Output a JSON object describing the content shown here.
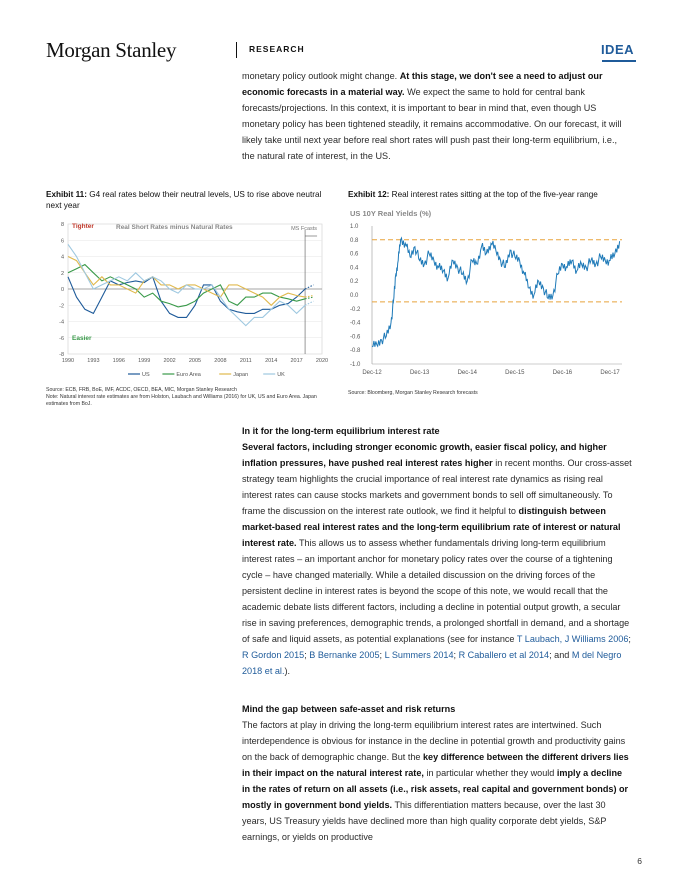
{
  "header": {
    "logo": "Morgan Stanley",
    "section": "RESEARCH",
    "tag": "IDEA"
  },
  "intro": {
    "t1": "monetary policy outlook might change. ",
    "b1": "At this stage, we don't see a need to adjust our economic forecasts in a material way.",
    "t2": " We expect the same to hold for central bank forecasts/projections. In this context, it is important to bear in mind that, even though US monetary policy has been tightened steadily, it remains accommodative. On our forecast, it will likely take until next year before real short rates will push past their long-term equilibrium, i.e., the natural rate of interest, in the US."
  },
  "exhibit11": {
    "label": "Exhibit 11:",
    "title": " G4 real rates below their neutral levels, US to rise above neutral next year",
    "source1": "Source: ECB, FRB, BoE, IMF, ACDC, OECD, BEA, MIC, Morgan Stanley Research",
    "source2": "Note: Natural interest rate estimates are from Holston, Laubach and Williams (2016) for UK, US and Euro Area. Japan estimates from BoJ.",
    "chart_data": {
      "type": "line",
      "title": "Real Short Rates minus Natural Rates",
      "annotations": [
        "Tighter",
        "Easier",
        "MS Fcasts"
      ],
      "x_ticks": [
        "1990",
        "1993",
        "1996",
        "1999",
        "2002",
        "2005",
        "2008",
        "2011",
        "2014",
        "2017",
        "2020"
      ],
      "y_ticks": [
        "8",
        "6",
        "4",
        "2",
        "0",
        "-2",
        "-4",
        "-6",
        "-8"
      ],
      "xlim": [
        1990,
        2020
      ],
      "ylim": [
        -8,
        8
      ],
      "forecast_start": 2018,
      "series": [
        {
          "name": "US",
          "color": "#1f5b9a",
          "x": [
            1990,
            1991,
            1992,
            1993,
            1994,
            1995,
            1996,
            1997,
            1998,
            1999,
            2000,
            2001,
            2002,
            2003,
            2004,
            2005,
            2006,
            2007,
            2008,
            2009,
            2010,
            2011,
            2012,
            2013,
            2014,
            2015,
            2016,
            2017,
            2018,
            2019
          ],
          "y": [
            1.5,
            -1.0,
            -2.5,
            -3.0,
            -1.0,
            1.0,
            0.5,
            0.8,
            1.0,
            0.8,
            1.5,
            -1.5,
            -3.0,
            -3.5,
            -3.5,
            -2.0,
            0.5,
            0.5,
            -1.5,
            -2.5,
            -2.8,
            -3.0,
            -3.0,
            -2.5,
            -2.5,
            -2.0,
            -1.8,
            -1.0,
            0.0,
            0.5
          ]
        },
        {
          "name": "Euro Area",
          "color": "#3a9a4a",
          "x": [
            1990,
            1991,
            1992,
            1993,
            1994,
            1995,
            1996,
            1997,
            1998,
            1999,
            2000,
            2001,
            2002,
            2003,
            2004,
            2005,
            2006,
            2007,
            2008,
            2009,
            2010,
            2011,
            2012,
            2013,
            2014,
            2015,
            2016,
            2017,
            2018,
            2019
          ],
          "y": [
            2.0,
            2.5,
            3.0,
            2.0,
            1.0,
            1.5,
            1.0,
            0.5,
            0.0,
            -1.0,
            -0.5,
            -1.5,
            -1.8,
            -2.2,
            -2.0,
            -1.5,
            -0.5,
            0.0,
            0.5,
            -1.5,
            -2.0,
            -1.0,
            -1.0,
            -0.5,
            -0.5,
            -1.0,
            -1.2,
            -1.5,
            -1.2,
            -1.0
          ]
        },
        {
          "name": "Japan",
          "color": "#e0b94d",
          "x": [
            1990,
            1991,
            1992,
            1993,
            1994,
            1995,
            1996,
            1997,
            1998,
            1999,
            2000,
            2001,
            2002,
            2003,
            2004,
            2005,
            2006,
            2007,
            2008,
            2009,
            2010,
            2011,
            2012,
            2013,
            2014,
            2015,
            2016,
            2017,
            2018,
            2019
          ],
          "y": [
            4.0,
            3.5,
            2.0,
            0.5,
            1.5,
            0.5,
            0.5,
            0.0,
            -0.5,
            1.0,
            1.5,
            0.5,
            0.5,
            0.0,
            0.5,
            0.5,
            0.0,
            -0.5,
            -1.0,
            0.5,
            0.5,
            0.0,
            -0.5,
            -1.0,
            -2.0,
            -1.0,
            -0.5,
            -0.8,
            -1.0,
            -0.8
          ]
        },
        {
          "name": "UK",
          "color": "#9ec8e0",
          "x": [
            1990,
            1991,
            1992,
            1993,
            1994,
            1995,
            1996,
            1997,
            1998,
            1999,
            2000,
            2001,
            2002,
            2003,
            2004,
            2005,
            2006,
            2007,
            2008,
            2009,
            2010,
            2011,
            2012,
            2013,
            2014,
            2015,
            2016,
            2017,
            2018,
            2019
          ],
          "y": [
            5.5,
            4.0,
            2.0,
            0.0,
            0.5,
            1.0,
            1.5,
            1.0,
            2.0,
            1.0,
            1.5,
            1.0,
            0.0,
            -0.5,
            0.5,
            0.0,
            0.0,
            0.5,
            -1.0,
            -2.5,
            -3.5,
            -4.5,
            -3.5,
            -3.5,
            -2.5,
            -1.5,
            -2.0,
            -3.0,
            -2.0,
            -1.5
          ]
        }
      ]
    }
  },
  "exhibit12": {
    "label": "Exhibit 12:",
    "title": "  Real interest rates sitting at the top of the five-year range",
    "source": "Source: Bloomberg, Morgan Stanley Research forecasts",
    "chart_data": {
      "type": "line",
      "title": "US 10Y Real Yields (%)",
      "x_ticks": [
        "Dec-12",
        "Dec-13",
        "Dec-14",
        "Dec-15",
        "Dec-16",
        "Dec-17"
      ],
      "y_ticks": [
        "1.0",
        "0.8",
        "0.6",
        "0.4",
        "0.2",
        "0.0",
        "-0.2",
        "-0.4",
        "-0.6",
        "-0.8",
        "-1.0"
      ],
      "xlim": [
        0,
        5.25
      ],
      "ylim": [
        -1.0,
        1.0
      ],
      "reference_lines": [
        0.8,
        -0.1
      ],
      "series": [
        {
          "name": "",
          "color": "#1f7ab8",
          "x": [
            0.0,
            0.1,
            0.2,
            0.3,
            0.4,
            0.45,
            0.5,
            0.55,
            0.6,
            0.7,
            0.8,
            0.9,
            1.0,
            1.1,
            1.2,
            1.3,
            1.4,
            1.5,
            1.6,
            1.7,
            1.8,
            1.9,
            2.0,
            2.1,
            2.2,
            2.3,
            2.4,
            2.5,
            2.6,
            2.7,
            2.8,
            2.9,
            3.0,
            3.1,
            3.2,
            3.3,
            3.4,
            3.5,
            3.6,
            3.7,
            3.8,
            3.9,
            4.0,
            4.1,
            4.2,
            4.3,
            4.4,
            4.5,
            4.6,
            4.7,
            4.8,
            4.9,
            5.0,
            5.1,
            5.2
          ],
          "y": [
            -0.75,
            -0.72,
            -0.65,
            -0.6,
            -0.4,
            -0.1,
            0.3,
            0.5,
            0.8,
            0.75,
            0.55,
            0.7,
            0.5,
            0.45,
            0.6,
            0.5,
            0.4,
            0.35,
            0.25,
            0.5,
            0.4,
            0.3,
            0.2,
            0.5,
            0.45,
            0.7,
            0.6,
            0.75,
            0.65,
            0.5,
            0.4,
            0.65,
            0.55,
            0.5,
            0.3,
            0.1,
            0.0,
            0.2,
            0.1,
            -0.05,
            0.0,
            0.3,
            0.45,
            0.4,
            0.5,
            0.35,
            0.45,
            0.4,
            0.5,
            0.45,
            0.55,
            0.5,
            0.5,
            0.6,
            0.78
          ]
        }
      ]
    }
  },
  "section1": {
    "heading": "In it for the long-term equilibrium interest rate",
    "b1": "Several factors, including stronger economic growth, easier fiscal policy, and higher inflation pressures, have pushed real interest rates higher",
    "t1": " in recent months. Our cross-asset strategy team highlights the crucial importance of real interest rate dynamics as rising real interest rates can cause stocks markets and government bonds to sell off simultaneously. To frame the discussion on the interest rate outlook, we find it helpful to ",
    "b2": "distinguish between market-based real interest rates and the long-term equilibrium rate of interest or natural interest rate.",
    "t2": " This allows us to assess whether fundamentals driving long-term equilibrium interest rates – an important anchor for monetary policy rates over the course of a tightening cycle – have changed materially. While a detailed discussion on the driving forces of the persistent decline in interest rates is beyond the scope of this note, we would recall that the academic debate lists different factors, including a decline in potential output growth, a secular rise in saving preferences, demographic trends, a prolonged shortfall in demand, and a shortage of safe and liquid assets, as potential explanations (see for instance ",
    "l1": "T Laubach, J Williams 2006",
    "s1": "; ",
    "l2": "R Gordon 2015",
    "s2": "; ",
    "l3": "B Bernanke 2005",
    "s3": "; ",
    "l4": "L Summers 2014",
    "s4": "; ",
    "l5": "R Caballero et al 2014",
    "s5": "; and ",
    "l6": "M del Negro 2018 et al.",
    "end": ")."
  },
  "section2": {
    "heading": "Mind the gap between safe-asset and risk returns",
    "t1": "The factors at play in driving the long-term equilibrium interest rates are intertwined. Such interdependence is obvious for instance in the decline in potential growth and productivity gains on the back of demographic change. But the ",
    "b1": "key difference between the different drivers lies in their impact on the natural interest rate,",
    "t2": " in particular whether they would ",
    "b2": "imply a decline in the rates of return on all assets (i.e., risk assets, real capital and government bonds) or mostly in government bond yields.",
    "t3": " This differentiation matters because, over the last 30 years, US Treasury yields have declined more than high quality corporate debt yields, S&P earnings, or yields on productive"
  },
  "page_number": "6"
}
